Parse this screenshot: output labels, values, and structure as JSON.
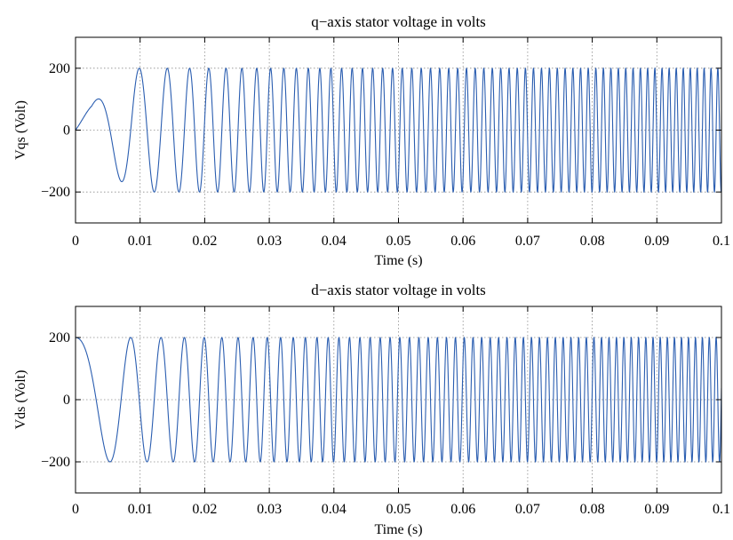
{
  "chart_data": [
    {
      "type": "line",
      "title": "q−axis stator voltage in volts",
      "xlabel": "Time (s)",
      "ylabel": "Vqs (Volt)",
      "xlim": [
        0,
        0.1
      ],
      "ylim": [
        -300,
        300
      ],
      "xticks": [
        0,
        0.01,
        0.02,
        0.03,
        0.04,
        0.05,
        0.06,
        0.07,
        0.08,
        0.09,
        0.1
      ],
      "xtick_labels": [
        "0",
        "0.01",
        "0.02",
        "0.03",
        "0.04",
        "0.05",
        "0.06",
        "0.07",
        "0.08",
        "0.09",
        "0.1"
      ],
      "yticks": [
        -200,
        0,
        200
      ],
      "ytick_labels": [
        "−200",
        "0",
        "200"
      ],
      "grid": true,
      "line_color": "#2a5db0",
      "series": [
        {
          "amplitude_envelope": {
            "t": [
              0,
              0.0025,
              0.009,
              0.012,
              0.1
            ],
            "v": [
              85,
              85,
              200,
              200,
              200
            ]
          },
          "frequency_sweep_hz": {
            "t": [
              0,
              0.01,
              0.02,
              0.04,
              0.07,
              0.1
            ],
            "f": [
              55,
              200,
              350,
              600,
              800,
              950
            ]
          },
          "phase_offset": 0
        }
      ]
    },
    {
      "type": "line",
      "title": "d−axis stator voltage in volts",
      "xlabel": "Time (s)",
      "ylabel": "Vds (Volt)",
      "xlim": [
        0,
        0.1
      ],
      "ylim": [
        -300,
        300
      ],
      "xticks": [
        0,
        0.01,
        0.02,
        0.03,
        0.04,
        0.05,
        0.06,
        0.07,
        0.08,
        0.09,
        0.1
      ],
      "xtick_labels": [
        "0",
        "0.01",
        "0.02",
        "0.03",
        "0.04",
        "0.05",
        "0.06",
        "0.07",
        "0.08",
        "0.09",
        "0.1"
      ],
      "yticks": [
        -200,
        0,
        200
      ],
      "ytick_labels": [
        "−200",
        "0",
        "200"
      ],
      "grid": true,
      "line_color": "#2a5db0",
      "series": [
        {
          "amplitude_envelope": {
            "t": [
              0,
              0.1
            ],
            "v": [
              200,
              200
            ]
          },
          "frequency_sweep_hz": {
            "t": [
              0,
              0.01,
              0.02,
              0.04,
              0.07,
              0.1
            ],
            "f": [
              55,
              200,
              350,
              600,
              800,
              950
            ]
          },
          "phase_offset": 1.5708
        }
      ]
    }
  ]
}
